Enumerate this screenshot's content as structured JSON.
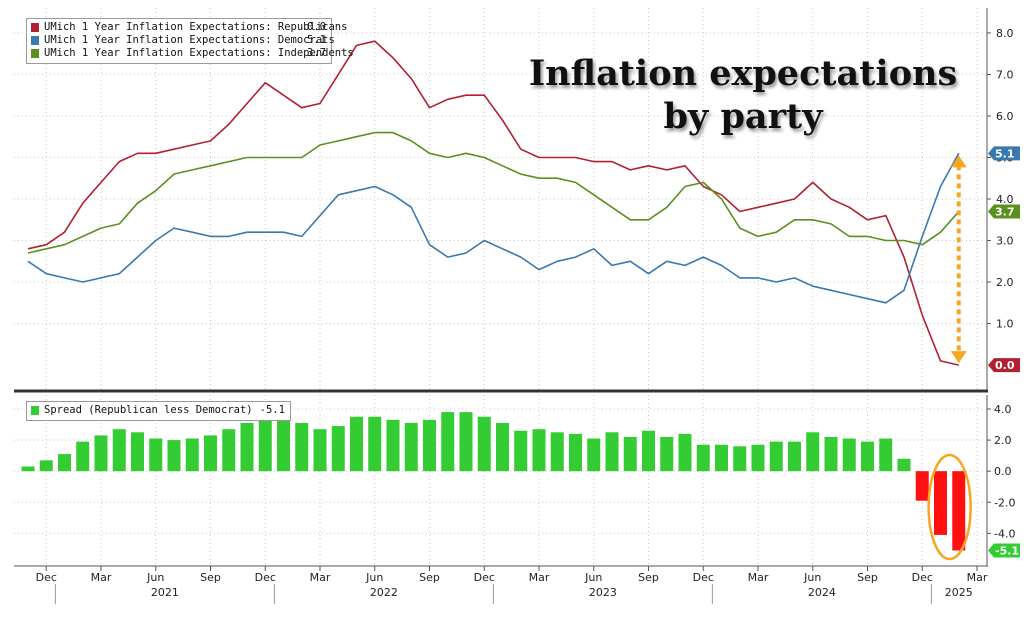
{
  "title_lines": [
    "Inflation expectations",
    "by party"
  ],
  "colors": {
    "republicans": "#b22032",
    "democrats": "#3a78b0",
    "independents": "#5b8f1f",
    "spread_pos": "#33cc33",
    "spread_neg": "#ff1111",
    "arrow": "#f5a623",
    "highlight": "#f5a623"
  },
  "chart_data": [
    {
      "type": "line",
      "x_unit": "month",
      "x": [
        "2020-11",
        "2020-12",
        "2021-01",
        "2021-02",
        "2021-03",
        "2021-04",
        "2021-05",
        "2021-06",
        "2021-07",
        "2021-08",
        "2021-09",
        "2021-10",
        "2021-11",
        "2021-12",
        "2021-13",
        "2022-02",
        "2022-03",
        "2022-04",
        "2022-05",
        "2022-06",
        "2022-07",
        "2022-08",
        "2022-09",
        "2022-10",
        "2022-11",
        "2022-12",
        "2023-01",
        "2023-02",
        "2023-03",
        "2023-04",
        "2023-05",
        "2023-06",
        "2023-07",
        "2023-08",
        "2023-09",
        "2023-10",
        "2023-11",
        "2023-12",
        "2024-01",
        "2024-02",
        "2024-03",
        "2024-04",
        "2024-05",
        "2024-06",
        "2024-07",
        "2024-08",
        "2024-09",
        "2024-10",
        "2024-11",
        "2024-12",
        "2025-01",
        "2025-02"
      ],
      "series": [
        {
          "name": "UMich 1 Year Inflation Expectations: Republicans",
          "legend_value": "0.0",
          "end_label": "0.0",
          "color_key": "republicans",
          "values": [
            2.8,
            2.9,
            3.2,
            3.9,
            4.4,
            4.9,
            5.1,
            5.1,
            5.2,
            5.3,
            5.4,
            5.8,
            6.3,
            6.8,
            6.5,
            6.2,
            6.3,
            7.0,
            7.7,
            7.8,
            7.4,
            6.9,
            6.2,
            6.4,
            6.5,
            6.5,
            5.9,
            5.2,
            5.0,
            5.0,
            5.0,
            4.9,
            4.9,
            4.7,
            4.8,
            4.7,
            4.8,
            4.3,
            4.1,
            3.7,
            3.8,
            3.9,
            4.0,
            4.4,
            4.0,
            3.8,
            3.5,
            3.6,
            2.6,
            1.2,
            0.1,
            0.0
          ]
        },
        {
          "name": "UMich 1 Year Inflation Expectations: Democrats",
          "legend_value": "5.1",
          "end_label": "5.1",
          "color_key": "democrats",
          "values": [
            2.5,
            2.2,
            2.1,
            2.0,
            2.1,
            2.2,
            2.6,
            3.0,
            3.3,
            3.2,
            3.1,
            3.1,
            3.2,
            3.2,
            3.2,
            3.1,
            3.6,
            4.1,
            4.2,
            4.3,
            4.1,
            3.8,
            2.9,
            2.6,
            2.7,
            3.0,
            2.8,
            2.6,
            2.3,
            2.5,
            2.6,
            2.8,
            2.4,
            2.5,
            2.2,
            2.5,
            2.4,
            2.6,
            2.4,
            2.1,
            2.1,
            2.0,
            2.1,
            1.9,
            1.8,
            1.7,
            1.6,
            1.5,
            1.8,
            3.1,
            4.3,
            5.1
          ]
        },
        {
          "name": "UMich 1 Year Inflation Expectations: Independents",
          "legend_value": "3.7",
          "end_label": "3.7",
          "color_key": "independents",
          "values": [
            2.7,
            2.8,
            2.9,
            3.1,
            3.3,
            3.4,
            3.9,
            4.2,
            4.6,
            4.7,
            4.8,
            4.9,
            5.0,
            5.0,
            5.0,
            5.0,
            5.3,
            5.4,
            5.5,
            5.6,
            5.6,
            5.4,
            5.1,
            5.0,
            5.1,
            5.0,
            4.8,
            4.6,
            4.5,
            4.5,
            4.4,
            4.1,
            3.8,
            3.5,
            3.5,
            3.8,
            4.3,
            4.4,
            4.0,
            3.3,
            3.1,
            3.2,
            3.5,
            3.5,
            3.4,
            3.1,
            3.1,
            3.0,
            3.0,
            2.9,
            3.2,
            3.7
          ]
        }
      ],
      "ylim": [
        -0.6,
        8.6
      ],
      "yticks": [
        "8.0",
        "7.0",
        "6.0",
        "5.0",
        "4.0",
        "3.0",
        "2.0",
        "1.0"
      ],
      "grid": true,
      "legend": "top-left"
    },
    {
      "type": "bar",
      "series": [
        {
          "name": "Spread (Republican less Democrat)",
          "legend_value": "-5.1",
          "end_label": "-5.1",
          "values": [
            0.3,
            0.7,
            1.1,
            1.9,
            2.3,
            2.7,
            2.5,
            2.1,
            2.0,
            2.1,
            2.3,
            2.7,
            3.1,
            3.6,
            3.3,
            3.1,
            2.7,
            2.9,
            3.5,
            3.5,
            3.3,
            3.1,
            3.3,
            3.8,
            3.8,
            3.5,
            3.1,
            2.6,
            2.7,
            2.5,
            2.4,
            2.1,
            2.5,
            2.2,
            2.6,
            2.2,
            2.4,
            1.7,
            1.7,
            1.6,
            1.7,
            1.9,
            1.9,
            2.5,
            2.2,
            2.1,
            1.9,
            2.1,
            0.8,
            -1.9,
            -4.1,
            -5.1
          ]
        }
      ],
      "ylim": [
        -6.1,
        4.9
      ],
      "yticks": [
        "4.0",
        "2.0",
        "0.0",
        "-2.0",
        "-4.0"
      ],
      "grid": true,
      "legend": "top-left"
    }
  ],
  "x_axis": {
    "month_ticks": [
      "Dec",
      "Mar",
      "Jun",
      "Sep",
      "Dec",
      "Mar",
      "Jun",
      "Sep",
      "Dec",
      "Mar",
      "Jun",
      "Sep",
      "Dec",
      "Mar",
      "Jun",
      "Sep",
      "Dec",
      "Mar"
    ],
    "year_labels": [
      "2021",
      "2022",
      "2023",
      "2024",
      "2025"
    ]
  }
}
